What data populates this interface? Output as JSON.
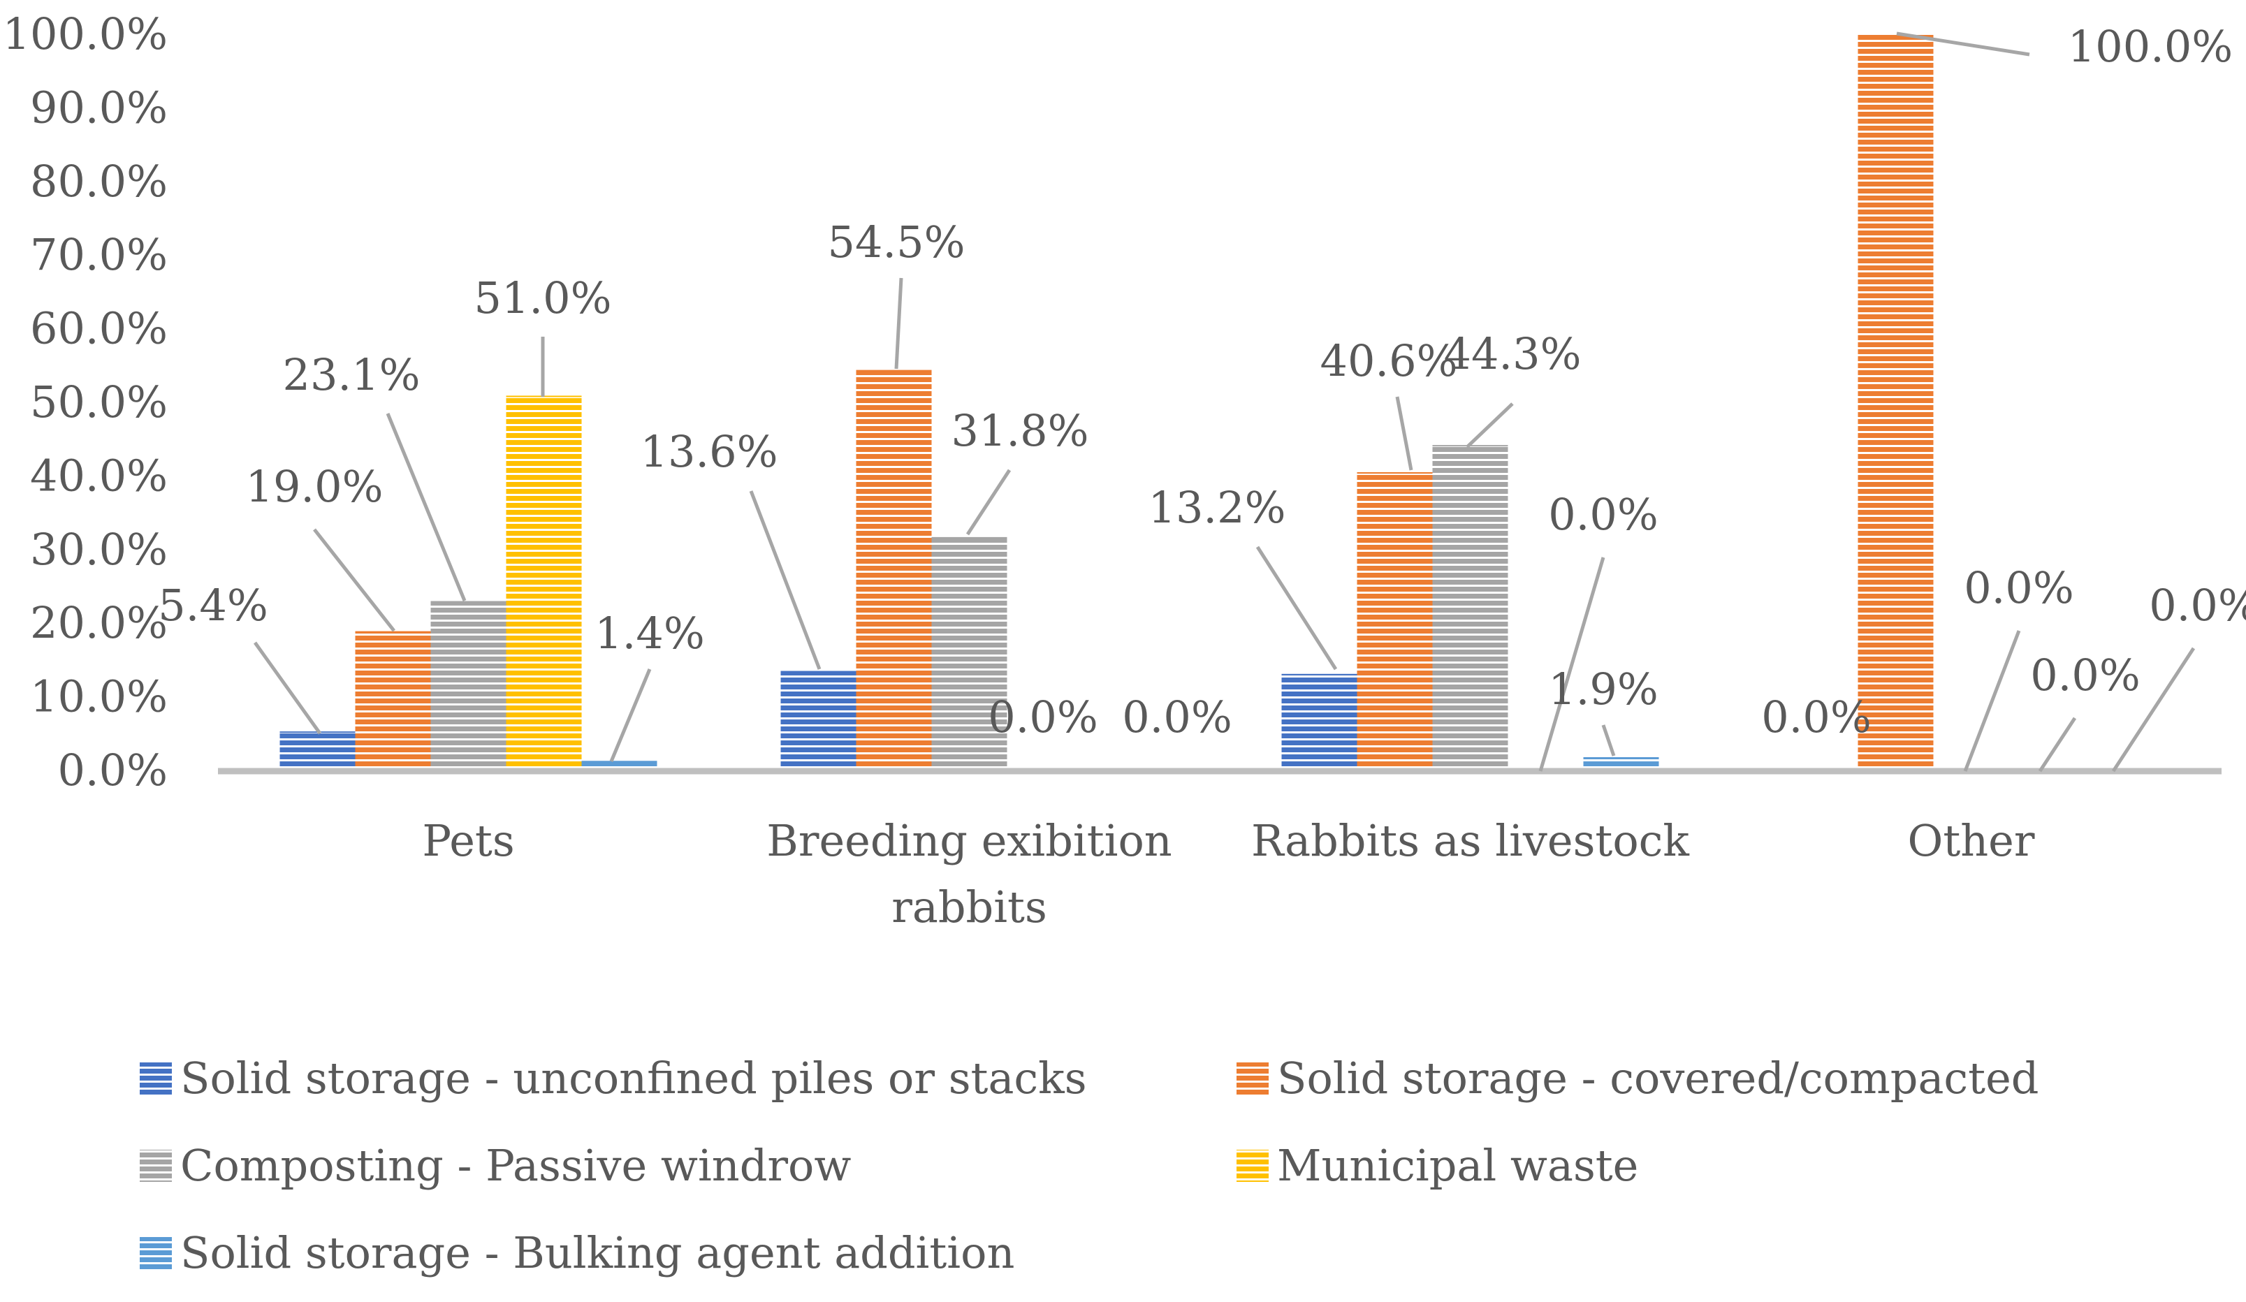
{
  "chart_data": {
    "type": "bar",
    "title": "",
    "xlabel": "",
    "ylabel": "",
    "ylim": [
      0,
      100
    ],
    "ytick_step": 10,
    "ytick_format": "percent_1dp",
    "grid": false,
    "legend_position": "bottom",
    "categories": [
      [
        "Pets"
      ],
      [
        "Breeding exibition",
        "rabbits"
      ],
      [
        "Rabbits as livestock"
      ],
      [
        "Other"
      ]
    ],
    "series": [
      {
        "name": "Solid storage - unconfined piles or stacks",
        "color": "#4472c4",
        "values": [
          5.4,
          13.6,
          13.2,
          0.0
        ]
      },
      {
        "name": "Solid storage - covered/compacted",
        "color": "#ed7d31",
        "values": [
          19.0,
          54.5,
          40.6,
          100.0
        ]
      },
      {
        "name": "Composting - Passive windrow",
        "color": "#a5a5a5",
        "values": [
          23.1,
          31.8,
          44.3,
          0.0
        ]
      },
      {
        "name": "Municipal waste",
        "color": "#ffc000",
        "values": [
          51.0,
          0.0,
          0.0,
          0.0
        ]
      },
      {
        "name": "Solid storage - Bulking agent addition",
        "color": "#5b9bd5",
        "values": [
          1.4,
          0.0,
          1.9,
          0.0
        ]
      }
    ],
    "data_labels": [
      [
        {
          "text": "5.4%"
        },
        {
          "text": "13.6%"
        },
        {
          "text": "13.2%"
        },
        {
          "text": "0.0%"
        }
      ],
      [
        {
          "text": "19.0%"
        },
        {
          "text": "54.5%"
        },
        {
          "text": "40.6%"
        },
        {
          "text": "100.0%"
        }
      ],
      [
        {
          "text": "23.1%"
        },
        {
          "text": "31.8%"
        },
        {
          "text": "44.3%"
        },
        {
          "text": "0.0%"
        }
      ],
      [
        {
          "text": "51.0%"
        },
        {
          "text": "0.0%"
        },
        null,
        {
          "text": "0.0%"
        }
      ],
      [
        {
          "text": "1.4%"
        },
        {
          "text": "0.0%"
        },
        {
          "text": "1.9%"
        },
        {
          "text": "0.0%"
        }
      ]
    ]
  }
}
